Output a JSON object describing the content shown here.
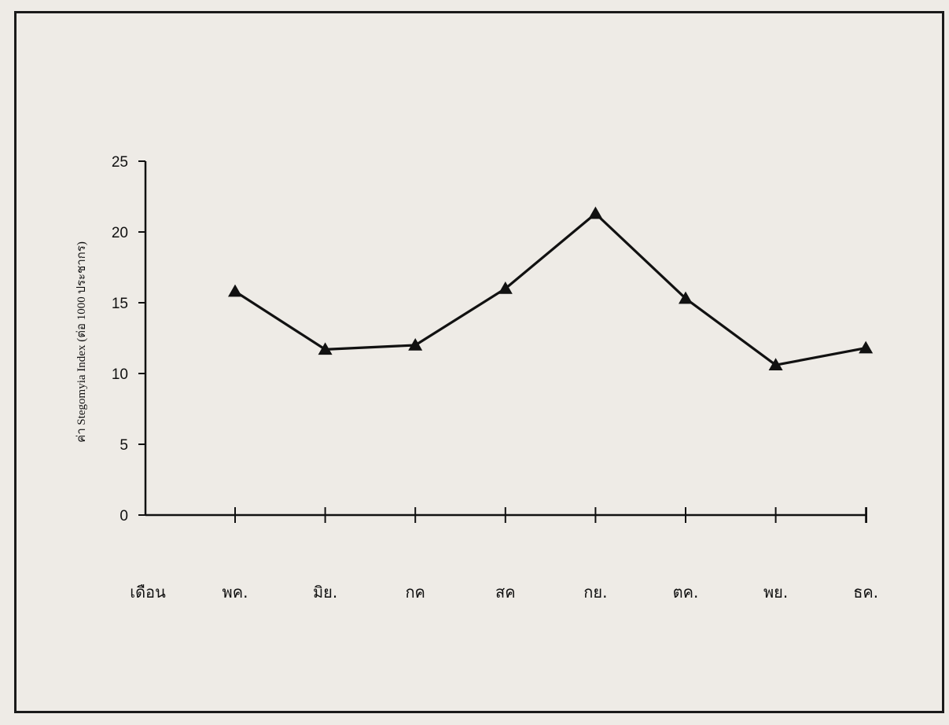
{
  "chart_data": {
    "type": "line",
    "title": "",
    "xlabel": "เดือน",
    "ylabel": "ค่า Stegomyia Index (ต่อ 1000 ประชากร)",
    "categories": [
      "พค.",
      "มิย.",
      "กค",
      "สค",
      "กย.",
      "ตค.",
      "พย.",
      "ธค."
    ],
    "series": [
      {
        "values": [
          15.8,
          11.7,
          12.0,
          16.0,
          21.3,
          15.3,
          10.6,
          11.8
        ],
        "marker": "triangle",
        "color": "#111111"
      }
    ],
    "ylim": [
      0,
      25
    ],
    "yticks": [
      0,
      5,
      10,
      15,
      20,
      25
    ],
    "grid": false,
    "legend": "none"
  }
}
